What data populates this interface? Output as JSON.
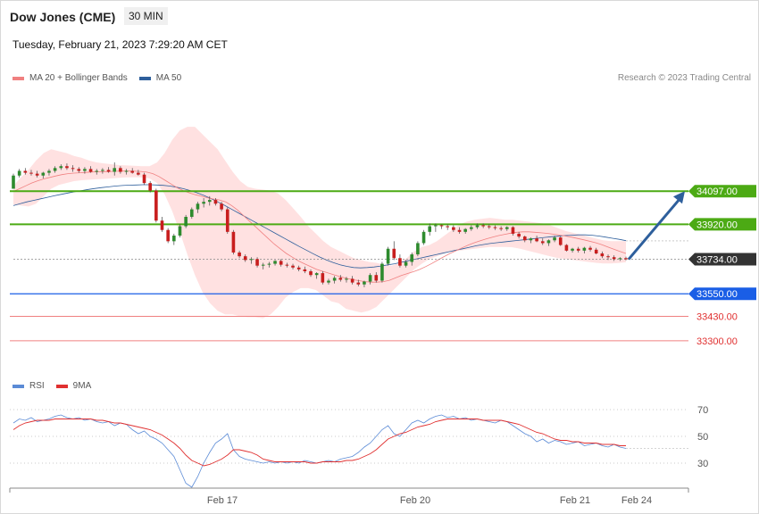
{
  "header": {
    "title": "Dow Jones (CME)",
    "timeframe": "30 MIN",
    "datetime": "Tuesday, February 21, 2023 7:29:20 AM CET"
  },
  "legend": {
    "ma20_label": "MA 20 + Bollinger Bands",
    "ma20_color": "#f08080",
    "ma50_label": "MA 50",
    "ma50_color": "#2e5f9c",
    "credit": "Research © 2023 Trading Central"
  },
  "rsi_legend": {
    "rsi_label": "RSI",
    "rsi_color": "#5b8bd6",
    "ma_label": "9MA",
    "ma_color": "#e03030"
  },
  "chart_data": [
    {
      "type": "candlestick",
      "ylim": [
        33185,
        34445
      ],
      "x_ticks": [
        "Feb 17",
        "Feb 20",
        "Feb 21",
        "Feb 24"
      ],
      "levels": [
        {
          "label": "34097.00",
          "value": 34097,
          "color": "#4caa14",
          "kind": "resistance"
        },
        {
          "label": "33920.00",
          "value": 33920,
          "color": "#4caa14",
          "kind": "resistance"
        },
        {
          "label": "33734.00",
          "value": 33734,
          "color": "#333333",
          "kind": "last"
        },
        {
          "label": "33550.00",
          "value": 33550,
          "color": "#1a5ee6",
          "kind": "support"
        },
        {
          "label": "33430.00",
          "value": 33430,
          "color": "#f08080",
          "kind": "minor"
        },
        {
          "label": "33300.00",
          "value": 33300,
          "color": "#f08080",
          "kind": "minor"
        }
      ],
      "candles": [
        [
          34110,
          34190,
          34110,
          34180
        ],
        [
          34180,
          34215,
          34170,
          34205
        ],
        [
          34205,
          34220,
          34185,
          34195
        ],
        [
          34195,
          34210,
          34180,
          34190
        ],
        [
          34190,
          34205,
          34170,
          34180
        ],
        [
          34180,
          34200,
          34165,
          34195
        ],
        [
          34195,
          34215,
          34180,
          34205
        ],
        [
          34205,
          34230,
          34195,
          34220
        ],
        [
          34220,
          34240,
          34210,
          34230
        ],
        [
          34230,
          34245,
          34210,
          34220
        ],
        [
          34220,
          34235,
          34200,
          34215
        ],
        [
          34215,
          34225,
          34195,
          34205
        ],
        [
          34205,
          34225,
          34190,
          34215
        ],
        [
          34215,
          34230,
          34195,
          34200
        ],
        [
          34200,
          34215,
          34185,
          34205
        ],
        [
          34205,
          34220,
          34190,
          34210
        ],
        [
          34210,
          34225,
          34195,
          34200
        ],
        [
          34200,
          34250,
          34180,
          34220
        ],
        [
          34220,
          34230,
          34190,
          34200
        ],
        [
          34200,
          34215,
          34185,
          34205
        ],
        [
          34205,
          34220,
          34190,
          34195
        ],
        [
          34195,
          34210,
          34180,
          34185
        ],
        [
          34185,
          34195,
          34130,
          34140
        ],
        [
          34140,
          34150,
          34090,
          34100
        ],
        [
          34100,
          34110,
          33930,
          33940
        ],
        [
          33940,
          33960,
          33880,
          33890
        ],
        [
          33890,
          33900,
          33820,
          33830
        ],
        [
          33830,
          33870,
          33810,
          33860
        ],
        [
          33860,
          33920,
          33850,
          33910
        ],
        [
          33910,
          33970,
          33900,
          33960
        ],
        [
          33960,
          34010,
          33950,
          34000
        ],
        [
          34000,
          34040,
          33980,
          34030
        ],
        [
          34030,
          34060,
          34010,
          34040
        ],
        [
          34040,
          34070,
          34020,
          34050
        ],
        [
          34050,
          34060,
          34020,
          34030
        ],
        [
          34030,
          34040,
          33990,
          34000
        ],
        [
          34000,
          34010,
          33870,
          33880
        ],
        [
          33880,
          33890,
          33760,
          33770
        ],
        [
          33770,
          33780,
          33740,
          33750
        ],
        [
          33750,
          33760,
          33720,
          33730
        ],
        [
          33730,
          33745,
          33710,
          33735
        ],
        [
          33735,
          33745,
          33690,
          33700
        ],
        [
          33700,
          33715,
          33680,
          33705
        ],
        [
          33705,
          33720,
          33690,
          33710
        ],
        [
          33710,
          33730,
          33700,
          33725
        ],
        [
          33725,
          33735,
          33695,
          33705
        ],
        [
          33705,
          33715,
          33690,
          33700
        ],
        [
          33700,
          33710,
          33680,
          33690
        ],
        [
          33690,
          33700,
          33670,
          33680
        ],
        [
          33680,
          33695,
          33660,
          33670
        ],
        [
          33670,
          33680,
          33640,
          33650
        ],
        [
          33650,
          33665,
          33630,
          33660
        ],
        [
          33660,
          33670,
          33600,
          33610
        ],
        [
          33610,
          33630,
          33600,
          33620
        ],
        [
          33620,
          33645,
          33605,
          33635
        ],
        [
          33635,
          33650,
          33615,
          33625
        ],
        [
          33625,
          33640,
          33610,
          33630
        ],
        [
          33630,
          33645,
          33600,
          33610
        ],
        [
          33610,
          33625,
          33590,
          33600
        ],
        [
          33600,
          33620,
          33585,
          33615
        ],
        [
          33615,
          33660,
          33600,
          33650
        ],
        [
          33650,
          33665,
          33610,
          33620
        ],
        [
          33620,
          33720,
          33610,
          33710
        ],
        [
          33710,
          33800,
          33700,
          33790
        ],
        [
          33790,
          33830,
          33730,
          33740
        ],
        [
          33740,
          33760,
          33690,
          33700
        ],
        [
          33700,
          33730,
          33690,
          33720
        ],
        [
          33720,
          33770,
          33700,
          33760
        ],
        [
          33760,
          33830,
          33750,
          33820
        ],
        [
          33820,
          33890,
          33810,
          33880
        ],
        [
          33880,
          33925,
          33860,
          33910
        ],
        [
          33910,
          33925,
          33880,
          33915
        ],
        [
          33915,
          33920,
          33895,
          33910
        ],
        [
          33910,
          33920,
          33890,
          33905
        ],
        [
          33905,
          33915,
          33880,
          33890
        ],
        [
          33890,
          33905,
          33870,
          33880
        ],
        [
          33880,
          33900,
          33870,
          33895
        ],
        [
          33895,
          33915,
          33885,
          33905
        ],
        [
          33905,
          33925,
          33895,
          33915
        ],
        [
          33915,
          33925,
          33900,
          33910
        ],
        [
          33910,
          33920,
          33895,
          33905
        ],
        [
          33905,
          33915,
          33890,
          33900
        ],
        [
          33900,
          33910,
          33885,
          33895
        ],
        [
          33895,
          33910,
          33885,
          33905
        ],
        [
          33905,
          33910,
          33860,
          33870
        ],
        [
          33870,
          33880,
          33845,
          33855
        ],
        [
          33855,
          33860,
          33825,
          33835
        ],
        [
          33835,
          33850,
          33820,
          33845
        ],
        [
          33845,
          33860,
          33825,
          33830
        ],
        [
          33830,
          33845,
          33810,
          33820
        ],
        [
          33820,
          33840,
          33805,
          33835
        ],
        [
          33835,
          33860,
          33825,
          33850
        ],
        [
          33850,
          33855,
          33805,
          33810
        ],
        [
          33810,
          33815,
          33775,
          33780
        ],
        [
          33780,
          33795,
          33770,
          33790
        ],
        [
          33790,
          33800,
          33770,
          33780
        ],
        [
          33780,
          33800,
          33765,
          33795
        ],
        [
          33795,
          33805,
          33775,
          33785
        ],
        [
          33785,
          33795,
          33760,
          33765
        ],
        [
          33765,
          33775,
          33740,
          33750
        ],
        [
          33750,
          33760,
          33730,
          33745
        ],
        [
          33745,
          33755,
          33725,
          33735
        ],
        [
          33735,
          33745,
          33725,
          33740
        ],
        [
          33740,
          33748,
          33728,
          33734
        ]
      ],
      "ma20": [
        34095,
        34110,
        34125,
        34140,
        34152,
        34162,
        34170,
        34178,
        34185,
        34190,
        34193,
        34195,
        34197,
        34199,
        34200,
        34201,
        34202,
        34203,
        34204,
        34204,
        34203,
        34202,
        34198,
        34190,
        34175,
        34155,
        34135,
        34115,
        34100,
        34088,
        34078,
        34070,
        34062,
        34055,
        34050,
        34040,
        34020,
        33995,
        33965,
        33935,
        33905,
        33875,
        33845,
        33815,
        33790,
        33765,
        33745,
        33725,
        33710,
        33695,
        33680,
        33670,
        33660,
        33650,
        33640,
        33632,
        33625,
        33620,
        33615,
        33612,
        33612,
        33615,
        33622,
        33635,
        33648,
        33658,
        33668,
        33680,
        33695,
        33712,
        33730,
        33748,
        33765,
        33780,
        33795,
        33810,
        33822,
        33833,
        33843,
        33852,
        33860,
        33867,
        33873,
        33878,
        33880,
        33880,
        33878,
        33875,
        33872,
        33868,
        33863,
        33858,
        33852,
        33845,
        33838,
        33830,
        33822,
        33812,
        33800,
        33788,
        33776,
        33765
      ],
      "ma50": [
        34020,
        34030,
        34040,
        34048,
        34056,
        34064,
        34072,
        34080,
        34087,
        34094,
        34100,
        34106,
        34111,
        34116,
        34120,
        34124,
        34127,
        34129,
        34130,
        34131,
        34131,
        34130,
        34128,
        34124,
        34118,
        34110,
        34100,
        34088,
        34074,
        34058,
        34040,
        34022,
        34002,
        33982,
        33962,
        33942,
        33922,
        33902,
        33882,
        33862,
        33842,
        33822,
        33802,
        33783,
        33764,
        33746,
        33730,
        33716,
        33704,
        33696,
        33690,
        33688,
        33690,
        33693,
        33698,
        33704,
        33710,
        33718,
        33726,
        33734,
        33742,
        33750,
        33758,
        33766,
        33774,
        33782,
        33790,
        33798,
        33806,
        33812,
        33818,
        33822,
        33826,
        33830,
        33834,
        33838,
        33842,
        33846,
        33850,
        33854,
        33857,
        33860,
        33862,
        33864,
        33864,
        33862,
        33858,
        33852,
        33846,
        33840,
        33833
      ],
      "boll_upper": [
        34125,
        34170,
        34210,
        34260,
        34300,
        34320,
        34310,
        34300,
        34285,
        34275,
        34260,
        34250,
        34245,
        34240,
        34236,
        34234,
        34232,
        34230,
        34230,
        34250,
        34300,
        34370,
        34420,
        34440,
        34440,
        34400,
        34360,
        34320,
        34260,
        34200,
        34150,
        34120,
        34110,
        34105,
        34100,
        34085,
        34050,
        34005,
        33960,
        33910,
        33870,
        33830,
        33800,
        33780,
        33760,
        33740,
        33730,
        33720,
        33715,
        33705,
        33700,
        33715,
        33740,
        33775,
        33800,
        33810,
        33830,
        33860,
        33890,
        33920,
        33935,
        33945,
        33950,
        33955,
        33950,
        33945,
        33945,
        33940,
        33935,
        33930,
        33925,
        33915,
        33900,
        33885,
        33875,
        33865,
        33855,
        33845,
        33835,
        33830,
        33830,
        33830
      ],
      "boll_lower": [
        34025,
        34020,
        34015,
        34030,
        34070,
        34110,
        34130,
        34140,
        34150,
        34155,
        34158,
        34160,
        34162,
        34165,
        34168,
        34170,
        34171,
        34170,
        34165,
        34140,
        34080,
        33990,
        33880,
        33760,
        33650,
        33560,
        33500,
        33460,
        33440,
        33440,
        33430,
        33425,
        33425,
        33420,
        33440,
        33480,
        33530,
        33560,
        33580,
        33580,
        33570,
        33540,
        33510,
        33500,
        33470,
        33460,
        33450,
        33460,
        33480,
        33520,
        33560,
        33600,
        33640,
        33680,
        33710,
        33735,
        33750,
        33765,
        33775,
        33780,
        33785,
        33790,
        33795,
        33800,
        33800,
        33800,
        33798,
        33790,
        33780,
        33770,
        33760,
        33750,
        33740,
        33735,
        33730,
        33725,
        33720,
        33715,
        33712,
        33712,
        33714,
        33718
      ],
      "forecast_arrow": {
        "from": 33734,
        "to": 34097
      }
    },
    {
      "type": "line",
      "name": "RSI",
      "ylim": [
        10,
        90
      ],
      "y_ticks": [
        70,
        50,
        30
      ],
      "rsi": [
        60,
        63,
        62,
        64,
        61,
        62,
        63,
        65,
        66,
        64,
        63,
        64,
        62,
        63,
        61,
        60,
        61,
        58,
        60,
        59,
        55,
        52,
        54,
        50,
        48,
        45,
        40,
        35,
        25,
        15,
        12,
        20,
        30,
        38,
        45,
        48,
        52,
        40,
        35,
        33,
        32,
        31,
        30,
        31,
        30,
        31,
        30,
        31,
        30,
        32,
        31,
        30,
        31,
        32,
        31,
        33,
        34,
        35,
        38,
        42,
        45,
        50,
        55,
        58,
        52,
        50,
        55,
        60,
        62,
        60,
        63,
        65,
        66,
        64,
        65,
        63,
        64,
        62,
        63,
        62,
        61,
        60,
        62,
        61,
        58,
        55,
        52,
        50,
        46,
        48,
        45,
        47,
        46,
        44,
        45,
        46,
        43,
        44,
        45,
        43,
        42,
        44,
        42,
        41
      ],
      "rsi_ma": [
        55,
        58,
        60,
        61,
        62,
        62,
        62,
        63,
        63,
        63,
        63,
        63,
        63,
        63,
        62,
        62,
        61,
        60,
        60,
        59,
        58,
        57,
        56,
        55,
        53,
        51,
        48,
        45,
        41,
        36,
        32,
        30,
        28,
        29,
        31,
        33,
        36,
        40,
        40,
        39,
        38,
        36,
        33,
        32,
        31,
        31,
        31,
        31,
        31,
        31,
        30,
        30,
        31,
        31,
        31,
        31,
        32,
        32,
        33,
        35,
        37,
        40,
        44,
        48,
        50,
        52,
        53,
        55,
        57,
        58,
        59,
        61,
        62,
        63,
        63,
        63,
        63,
        63,
        63,
        62,
        62,
        62,
        62,
        61,
        60,
        59,
        57,
        55,
        53,
        52,
        50,
        48,
        47,
        47,
        46,
        46,
        45,
        45,
        45,
        44,
        44,
        44,
        43,
        43
      ]
    }
  ]
}
